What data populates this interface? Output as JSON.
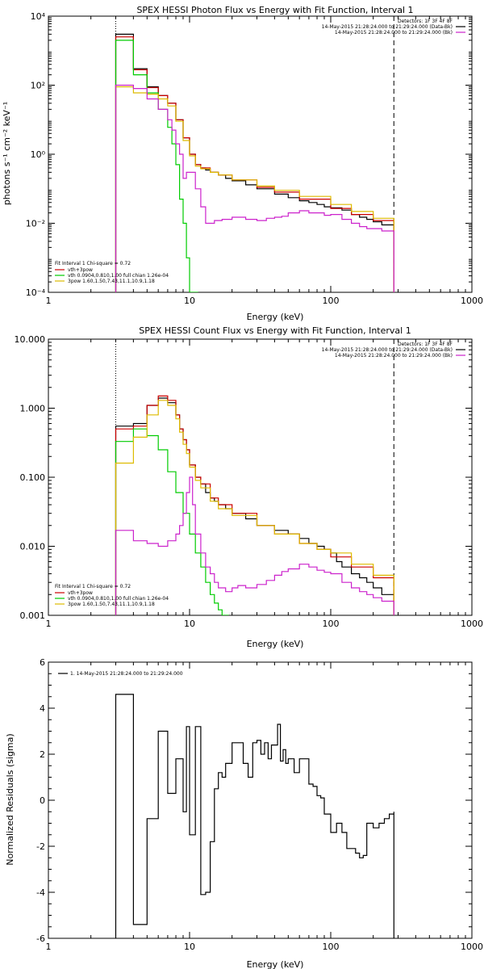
{
  "chart_data": [
    {
      "type": "line",
      "title": "SPEX HESSI Photon Flux vs Energy with Fit Function, Interval 1",
      "xlabel": "Energy (keV)",
      "ylabel": "photons s⁻¹ cm⁻² keV⁻¹",
      "xscale": "log",
      "yscale": "log",
      "xlim": [
        1,
        1000
      ],
      "ylim": [
        0.0001,
        10000
      ],
      "x_ticks": [
        "1",
        "10",
        "100",
        "1000"
      ],
      "y_ticks": [
        "10⁻⁴",
        "10⁻²",
        "10⁰",
        "10²",
        "10⁴"
      ],
      "vlines": [
        {
          "x": 3,
          "style": "dotted",
          "color": "#000000"
        },
        {
          "x": 280,
          "style": "dashed",
          "color": "#000000"
        }
      ],
      "legend_top": {
        "position": "top-right",
        "lines": [
          "Detectors: 1F 3F 4F 8F",
          "14-May-2015 21:28:24.000 to 21:29:24.000 (Data-Bk)",
          "14-May-2015 21:28:24.000 to 21:29:24.000 (Bk)"
        ],
        "colors": [
          "#000000",
          "#000000",
          "#cc22cc"
        ]
      },
      "legend_fit": {
        "position": "bottom-left",
        "header": "Fit Interval 1    Chi-square = 0.72",
        "lines": [
          "vth+3pow",
          "vth 0.0904,0.810,1.00  full chian 1.26e-04",
          "3pow 1.60,1.50,7.43,11.1,10.9,1.18"
        ],
        "colors": [
          "#cc0000",
          "#00cc00",
          "#ddbb00"
        ]
      },
      "series": [
        {
          "color": "#000000",
          "x": [
            3,
            3.5,
            4,
            4.5,
            5,
            5.5,
            6,
            6.5,
            7,
            8,
            9,
            10,
            11,
            12,
            13,
            14,
            16,
            18,
            20,
            25,
            30,
            40,
            50,
            60,
            70,
            80,
            90,
            100,
            120,
            140,
            160,
            180,
            200,
            230,
            280
          ],
          "values": [
            3000,
            3000,
            300,
            300,
            90,
            90,
            50,
            50,
            30,
            10,
            3,
            1,
            0.5,
            0.4,
            0.35,
            0.3,
            0.25,
            0.2,
            0.17,
            0.13,
            0.1,
            0.07,
            0.055,
            0.045,
            0.04,
            0.035,
            0.03,
            0.028,
            0.024,
            0.018,
            0.015,
            0.013,
            0.011,
            0.009,
            0.009
          ]
        },
        {
          "color": "#cc0000",
          "x": [
            3,
            3.5,
            4,
            4.5,
            5,
            5.5,
            6,
            6.5,
            7,
            8,
            9,
            10,
            11,
            12,
            14,
            16,
            20,
            30,
            40,
            60,
            100,
            140,
            200,
            280
          ],
          "values": [
            2500,
            2500,
            280,
            280,
            85,
            85,
            50,
            50,
            30,
            10,
            3,
            1,
            0.5,
            0.4,
            0.3,
            0.25,
            0.18,
            0.11,
            0.08,
            0.05,
            0.027,
            0.018,
            0.012,
            0.009
          ]
        },
        {
          "color": "#00cc00",
          "x": [
            3,
            3.5,
            4,
            4.5,
            5,
            5.5,
            6,
            6.5,
            7,
            7.5,
            8,
            8.5,
            9,
            9.5,
            10,
            11,
            11.5
          ],
          "values": [
            2000,
            2000,
            200,
            200,
            60,
            60,
            20,
            20,
            6,
            2,
            0.5,
            0.05,
            0.01,
            0.001,
            0.0001,
            0.0001,
            0.0001
          ]
        },
        {
          "color": "#ddbb00",
          "x": [
            3,
            3.5,
            4,
            4.5,
            5,
            5.5,
            6,
            6.5,
            7,
            8,
            9,
            10,
            11,
            12,
            14,
            16,
            20,
            30,
            40,
            60,
            100,
            140,
            200,
            280
          ],
          "values": [
            90,
            90,
            60,
            60,
            55,
            55,
            40,
            40,
            25,
            9,
            2.5,
            0.9,
            0.45,
            0.38,
            0.3,
            0.25,
            0.18,
            0.12,
            0.09,
            0.06,
            0.035,
            0.022,
            0.014,
            0.009
          ]
        },
        {
          "color": "#cc22cc",
          "x": [
            3,
            3.5,
            4,
            4.5,
            5,
            5.5,
            6,
            6.5,
            7,
            7.5,
            8,
            8.5,
            9,
            9.5,
            10,
            11,
            12,
            13,
            15,
            17,
            20,
            25,
            30,
            35,
            40,
            45,
            50,
            60,
            70,
            80,
            90,
            100,
            120,
            140,
            160,
            180,
            200,
            230,
            280
          ],
          "values": [
            100,
            100,
            80,
            80,
            40,
            40,
            20,
            20,
            10,
            5,
            2,
            1,
            0.2,
            0.3,
            0.3,
            0.1,
            0.03,
            0.01,
            0.012,
            0.013,
            0.015,
            0.013,
            0.012,
            0.014,
            0.015,
            0.016,
            0.02,
            0.023,
            0.02,
            0.02,
            0.017,
            0.018,
            0.013,
            0.01,
            0.008,
            0.007,
            0.007,
            0.006,
            0.006
          ]
        }
      ]
    },
    {
      "type": "line",
      "title": "SPEX HESSI Count Flux vs Energy with Fit Function, Interval 1",
      "xlabel": "Energy (keV)",
      "ylabel": "",
      "xscale": "log",
      "yscale": "log",
      "xlim": [
        1,
        1000
      ],
      "ylim": [
        0.001,
        10
      ],
      "x_ticks": [
        "1",
        "10",
        "100",
        "1000"
      ],
      "y_ticks": [
        "0.001",
        "0.010",
        "0.100",
        "1.000",
        "10.000"
      ],
      "vlines": [
        {
          "x": 3,
          "style": "dotted",
          "color": "#000000"
        },
        {
          "x": 280,
          "style": "dashed",
          "color": "#000000"
        }
      ],
      "legend_top": {
        "position": "top-right",
        "lines": [
          "Detectors: 1F 3F 4F 8F",
          "14-May-2015 21:28:24.000 to 21:29:24.000 (Data-Bk)",
          "14-May-2015 21:28:24.000 to 21:29:24.000 (Bk)"
        ],
        "colors": [
          "#000000",
          "#000000",
          "#cc22cc"
        ]
      },
      "legend_fit": {
        "position": "bottom-left",
        "header": "Fit Interval 1    Chi-square = 0.72",
        "lines": [
          "vth+3pow",
          "vth 0.0904,0.810,1.00  full chian 1.26e-04",
          "3pow 1.60,1.50,7.43,11.1,10.9,1.18"
        ],
        "colors": [
          "#cc0000",
          "#00cc00",
          "#ddbb00"
        ]
      },
      "series": [
        {
          "color": "#000000",
          "x": [
            3,
            3.5,
            4,
            4.5,
            5,
            5.5,
            6,
            6.5,
            7,
            7.5,
            8,
            8.5,
            9,
            9.5,
            10,
            11,
            12,
            13,
            14,
            15,
            16,
            18,
            20,
            25,
            30,
            40,
            50,
            60,
            70,
            80,
            90,
            100,
            110,
            120,
            140,
            160,
            180,
            200,
            230,
            280
          ],
          "values": [
            0.55,
            0.55,
            0.6,
            0.6,
            1.1,
            1.1,
            1.4,
            1.4,
            1.2,
            1.2,
            0.8,
            0.5,
            0.35,
            0.25,
            0.15,
            0.1,
            0.08,
            0.06,
            0.05,
            0.045,
            0.04,
            0.035,
            0.03,
            0.025,
            0.02,
            0.017,
            0.015,
            0.013,
            0.011,
            0.01,
            0.009,
            0.008,
            0.006,
            0.005,
            0.004,
            0.0035,
            0.003,
            0.0025,
            0.002,
            0.0015
          ]
        },
        {
          "color": "#cc0000",
          "x": [
            3,
            3.5,
            4,
            4.5,
            5,
            5.5,
            6,
            6.5,
            7,
            7.5,
            8,
            8.5,
            9,
            9.5,
            10,
            11,
            12,
            14,
            16,
            20,
            30,
            40,
            60,
            80,
            100,
            140,
            200,
            280
          ],
          "values": [
            0.5,
            0.5,
            0.55,
            0.55,
            1.1,
            1.1,
            1.5,
            1.5,
            1.3,
            1.3,
            0.8,
            0.5,
            0.35,
            0.25,
            0.15,
            0.1,
            0.08,
            0.05,
            0.04,
            0.03,
            0.02,
            0.015,
            0.011,
            0.009,
            0.007,
            0.005,
            0.0035,
            0.002
          ]
        },
        {
          "color": "#00cc00",
          "x": [
            3,
            3.5,
            4,
            4.5,
            5,
            5.5,
            6,
            6.5,
            7,
            7.5,
            8,
            9,
            10,
            11,
            12,
            13,
            14,
            15,
            16,
            17,
            18,
            19
          ],
          "values": [
            0.33,
            0.33,
            0.5,
            0.5,
            0.4,
            0.4,
            0.25,
            0.25,
            0.12,
            0.12,
            0.06,
            0.03,
            0.015,
            0.008,
            0.005,
            0.003,
            0.002,
            0.0015,
            0.0012,
            0.001,
            0.001,
            0.001
          ]
        },
        {
          "color": "#ddbb00",
          "x": [
            3,
            3.5,
            4,
            4.5,
            5,
            5.5,
            6,
            6.5,
            7,
            7.5,
            8,
            8.5,
            9,
            9.5,
            10,
            11,
            12,
            14,
            16,
            20,
            30,
            40,
            60,
            80,
            100,
            140,
            200,
            280
          ],
          "values": [
            0.16,
            0.16,
            0.38,
            0.38,
            0.8,
            0.8,
            1.3,
            1.3,
            1.1,
            1.1,
            0.7,
            0.45,
            0.3,
            0.22,
            0.14,
            0.09,
            0.07,
            0.045,
            0.035,
            0.028,
            0.02,
            0.015,
            0.011,
            0.009,
            0.008,
            0.0055,
            0.0038,
            0.0025
          ]
        },
        {
          "color": "#cc22cc",
          "x": [
            3,
            3.5,
            4,
            4.5,
            5,
            5.5,
            6,
            6.5,
            7,
            7.5,
            8,
            8.5,
            9,
            9.5,
            10,
            10.5,
            11,
            12,
            13,
            14,
            15,
            16,
            18,
            20,
            22,
            25,
            30,
            35,
            40,
            45,
            50,
            60,
            70,
            80,
            90,
            100,
            120,
            140,
            160,
            180,
            200,
            230,
            280
          ],
          "values": [
            0.017,
            0.017,
            0.012,
            0.012,
            0.011,
            0.011,
            0.01,
            0.01,
            0.012,
            0.012,
            0.015,
            0.02,
            0.03,
            0.06,
            0.1,
            0.04,
            0.015,
            0.008,
            0.005,
            0.004,
            0.003,
            0.0025,
            0.0022,
            0.0025,
            0.0027,
            0.0025,
            0.0028,
            0.0032,
            0.0038,
            0.0043,
            0.0047,
            0.0055,
            0.005,
            0.0045,
            0.0042,
            0.004,
            0.003,
            0.0025,
            0.0022,
            0.002,
            0.0018,
            0.0016,
            0.0015
          ]
        }
      ]
    },
    {
      "type": "line",
      "title": "",
      "xlabel": "Energy (keV)",
      "ylabel": "Normalized Residuals (sigma)",
      "xscale": "log",
      "yscale": "linear",
      "xlim": [
        1,
        1000
      ],
      "ylim": [
        -6,
        6
      ],
      "x_ticks": [
        "1",
        "10",
        "100",
        "1000"
      ],
      "y_ticks": [
        "-6",
        "-4",
        "-2",
        "0",
        "2",
        "4",
        "6"
      ],
      "legend_top": {
        "position": "top-left",
        "lines": [
          "1. 14-May-2015 21:28:24.000 to 21:29:24.000"
        ],
        "colors": [
          "#000000"
        ]
      },
      "series": [
        {
          "color": "#000000",
          "x": [
            3,
            4,
            5,
            6,
            6.5,
            7,
            7.5,
            8,
            8.5,
            9,
            9.5,
            10,
            10.5,
            11,
            11.5,
            12,
            13,
            14,
            15,
            16,
            17,
            18,
            19,
            20,
            22,
            24,
            26,
            28,
            30,
            32,
            34,
            36,
            38,
            40,
            42,
            44,
            46,
            48,
            50,
            55,
            60,
            65,
            70,
            75,
            80,
            85,
            90,
            100,
            110,
            120,
            130,
            140,
            150,
            160,
            170,
            180,
            200,
            220,
            240,
            260,
            280
          ],
          "values": [
            4.6,
            -5.4,
            -0.8,
            3.0,
            3.0,
            0.3,
            0.3,
            1.8,
            1.8,
            -0.5,
            3.2,
            -1.5,
            -1.5,
            3.2,
            3.2,
            -4.1,
            -4.0,
            -1.8,
            0.5,
            1.2,
            1.0,
            1.6,
            1.6,
            2.5,
            2.5,
            1.6,
            1.0,
            2.5,
            2.6,
            2.0,
            2.5,
            1.8,
            2.4,
            2.4,
            3.3,
            1.7,
            2.2,
            1.6,
            1.8,
            1.2,
            1.8,
            1.8,
            0.7,
            0.6,
            0.2,
            0.1,
            -0.6,
            -1.4,
            -1.0,
            -1.4,
            -2.1,
            -2.1,
            -2.3,
            -2.5,
            -2.4,
            -1.0,
            -1.2,
            -1.0,
            -0.8,
            -0.6,
            -0.5
          ]
        }
      ]
    }
  ]
}
